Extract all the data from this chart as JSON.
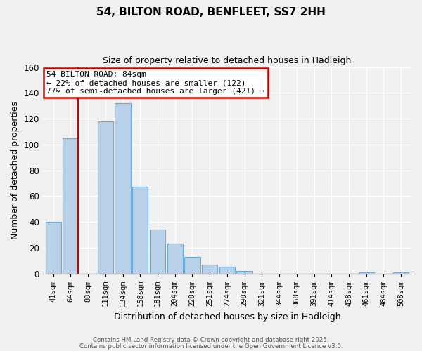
{
  "title": "54, BILTON ROAD, BENFLEET, SS7 2HH",
  "subtitle": "Size of property relative to detached houses in Hadleigh",
  "xlabel": "Distribution of detached houses by size in Hadleigh",
  "ylabel": "Number of detached properties",
  "bar_color": "#b8d0e8",
  "bar_edge_color": "#6aaad4",
  "bin_labels": [
    "41sqm",
    "64sqm",
    "88sqm",
    "111sqm",
    "134sqm",
    "158sqm",
    "181sqm",
    "204sqm",
    "228sqm",
    "251sqm",
    "274sqm",
    "298sqm",
    "321sqm",
    "344sqm",
    "368sqm",
    "391sqm",
    "414sqm",
    "438sqm",
    "461sqm",
    "484sqm",
    "508sqm"
  ],
  "bar_values": [
    40,
    105,
    0,
    118,
    132,
    67,
    34,
    23,
    13,
    7,
    5,
    2,
    0,
    0,
    0,
    0,
    0,
    0,
    1,
    0,
    1
  ],
  "ylim": [
    0,
    160
  ],
  "yticks": [
    0,
    20,
    40,
    60,
    80,
    100,
    120,
    140,
    160
  ],
  "annotation_title": "54 BILTON ROAD: 84sqm",
  "annotation_line1": "← 22% of detached houses are smaller (122)",
  "annotation_line2": "77% of semi-detached houses are larger (421) →",
  "annotation_box_color": "#ffffff",
  "annotation_box_edge_color": "#cc0000",
  "vertical_line_color": "#cc0000",
  "footnote1": "Contains HM Land Registry data © Crown copyright and database right 2025.",
  "footnote2": "Contains public sector information licensed under the Open Government Licence v3.0.",
  "background_color": "#f0f0f0",
  "grid_color": "#ffffff"
}
